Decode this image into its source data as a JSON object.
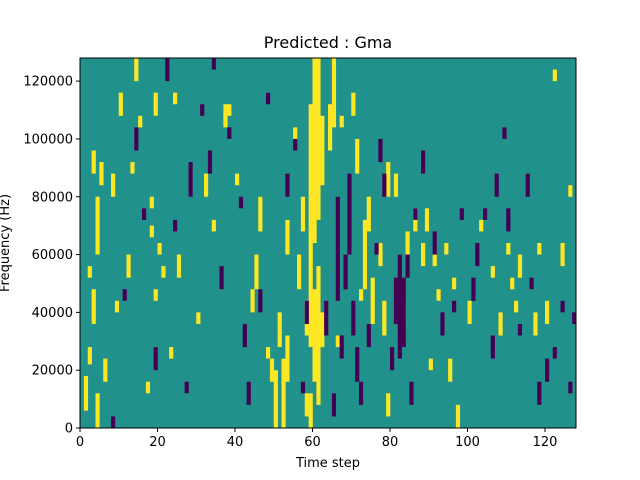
{
  "chart_data": {
    "type": "heatmap",
    "title": "Predicted : Gma",
    "xlabel": "Time step",
    "ylabel": "Frequency (Hz)",
    "xlim": [
      0,
      128
    ],
    "ylim": [
      0,
      128000
    ],
    "x_ticks": [
      0,
      20,
      40,
      60,
      80,
      100,
      120
    ],
    "y_ticks": [
      0,
      20000,
      40000,
      60000,
      80000,
      100000,
      120000
    ],
    "n_time_steps": 128,
    "n_freq_bins": 64,
    "freq_bin_hz": 2000,
    "levels": {
      "low": -1,
      "mid": 0,
      "high": 1
    },
    "colors": {
      "low": "#440154",
      "mid": "#21918c",
      "high": "#fde725"
    },
    "cells_high": [
      [
        1,
        3,
        9
      ],
      [
        2,
        11,
        14
      ],
      [
        3,
        44,
        48
      ],
      [
        2,
        26,
        28
      ],
      [
        3,
        18,
        24
      ],
      [
        4,
        0,
        6
      ],
      [
        5,
        42,
        46
      ],
      [
        4,
        30,
        40
      ],
      [
        6,
        8,
        12
      ],
      [
        8,
        40,
        44
      ],
      [
        9,
        20,
        22
      ],
      [
        10,
        54,
        58
      ],
      [
        12,
        26,
        30
      ],
      [
        13,
        44,
        46
      ],
      [
        14,
        60,
        64
      ],
      [
        15,
        52,
        54
      ],
      [
        17,
        6,
        8
      ],
      [
        18,
        33,
        35
      ],
      [
        18,
        38,
        40
      ],
      [
        19,
        54,
        58
      ],
      [
        19,
        22,
        24
      ],
      [
        20,
        30,
        32
      ],
      [
        21,
        26,
        28
      ],
      [
        23,
        12,
        14
      ],
      [
        24,
        56,
        58
      ],
      [
        25,
        26,
        30
      ],
      [
        30,
        18,
        20
      ],
      [
        32,
        40,
        44
      ],
      [
        34,
        34,
        36
      ],
      [
        37,
        52,
        56
      ],
      [
        38,
        54,
        56
      ],
      [
        40,
        42,
        44
      ],
      [
        44,
        20,
        24
      ],
      [
        45,
        24,
        30
      ],
      [
        46,
        34,
        40
      ],
      [
        48,
        12,
        14
      ],
      [
        49,
        8,
        12
      ],
      [
        50,
        0,
        10
      ],
      [
        51,
        14,
        20
      ],
      [
        52,
        0,
        12
      ],
      [
        53,
        8,
        16
      ],
      [
        53,
        30,
        36
      ],
      [
        55,
        50,
        52
      ],
      [
        56,
        24,
        30
      ],
      [
        57,
        34,
        40
      ],
      [
        58,
        2,
        6
      ],
      [
        58,
        16,
        22
      ],
      [
        59,
        0,
        6
      ],
      [
        59,
        14,
        56
      ],
      [
        60,
        8,
        24
      ],
      [
        60,
        32,
        64
      ],
      [
        61,
        4,
        28
      ],
      [
        61,
        36,
        64
      ],
      [
        62,
        14,
        20
      ],
      [
        62,
        42,
        54
      ],
      [
        64,
        48,
        56
      ],
      [
        65,
        52,
        64
      ],
      [
        66,
        14,
        16
      ],
      [
        67,
        52,
        54
      ],
      [
        70,
        54,
        58
      ],
      [
        71,
        44,
        50
      ],
      [
        72,
        22,
        24
      ],
      [
        73,
        24,
        36
      ],
      [
        74,
        34,
        40
      ],
      [
        75,
        18,
        26
      ],
      [
        77,
        28,
        32
      ],
      [
        78,
        16,
        22
      ],
      [
        79,
        2,
        6
      ],
      [
        79,
        40,
        46
      ],
      [
        81,
        40,
        44
      ],
      [
        83,
        18,
        22
      ],
      [
        84,
        30,
        34
      ],
      [
        86,
        34,
        38
      ],
      [
        88,
        28,
        32
      ],
      [
        89,
        34,
        38
      ],
      [
        90,
        10,
        12
      ],
      [
        91,
        28,
        30
      ],
      [
        92,
        22,
        24
      ],
      [
        94,
        30,
        32
      ],
      [
        95,
        8,
        12
      ],
      [
        96,
        24,
        26
      ],
      [
        97,
        0,
        4
      ],
      [
        100,
        18,
        22
      ],
      [
        103,
        34,
        36
      ],
      [
        106,
        26,
        28
      ],
      [
        108,
        16,
        20
      ],
      [
        110,
        30,
        32
      ],
      [
        111,
        24,
        26
      ],
      [
        112,
        20,
        22
      ],
      [
        113,
        26,
        30
      ],
      [
        117,
        16,
        20
      ],
      [
        118,
        30,
        32
      ],
      [
        120,
        18,
        22
      ],
      [
        122,
        60,
        62
      ],
      [
        124,
        28,
        32
      ],
      [
        126,
        40,
        42
      ]
    ],
    "cells_low": [
      [
        8,
        0,
        2
      ],
      [
        11,
        22,
        24
      ],
      [
        14,
        48,
        52
      ],
      [
        16,
        36,
        38
      ],
      [
        19,
        10,
        14
      ],
      [
        22,
        60,
        64
      ],
      [
        24,
        34,
        36
      ],
      [
        27,
        6,
        8
      ],
      [
        28,
        40,
        46
      ],
      [
        31,
        54,
        56
      ],
      [
        33,
        44,
        48
      ],
      [
        34,
        62,
        64
      ],
      [
        36,
        24,
        28
      ],
      [
        38,
        50,
        52
      ],
      [
        41,
        38,
        40
      ],
      [
        42,
        14,
        18
      ],
      [
        43,
        4,
        8
      ],
      [
        46,
        20,
        24
      ],
      [
        48,
        56,
        58
      ],
      [
        53,
        40,
        44
      ],
      [
        55,
        48,
        50
      ],
      [
        57,
        6,
        8
      ],
      [
        58,
        18,
        22
      ],
      [
        63,
        16,
        22
      ],
      [
        65,
        2,
        6
      ],
      [
        66,
        22,
        40
      ],
      [
        67,
        12,
        16
      ],
      [
        68,
        24,
        30
      ],
      [
        69,
        30,
        44
      ],
      [
        70,
        16,
        22
      ],
      [
        71,
        8,
        14
      ],
      [
        72,
        4,
        8
      ],
      [
        74,
        14,
        18
      ],
      [
        76,
        30,
        32
      ],
      [
        77,
        46,
        50
      ],
      [
        78,
        40,
        44
      ],
      [
        80,
        10,
        14
      ],
      [
        81,
        18,
        26
      ],
      [
        82,
        12,
        30
      ],
      [
        83,
        14,
        26
      ],
      [
        84,
        26,
        30
      ],
      [
        85,
        4,
        8
      ],
      [
        86,
        36,
        38
      ],
      [
        88,
        44,
        48
      ],
      [
        91,
        30,
        34
      ],
      [
        93,
        16,
        20
      ],
      [
        96,
        20,
        22
      ],
      [
        98,
        36,
        38
      ],
      [
        101,
        22,
        26
      ],
      [
        102,
        28,
        32
      ],
      [
        104,
        36,
        38
      ],
      [
        106,
        12,
        16
      ],
      [
        107,
        40,
        44
      ],
      [
        109,
        50,
        52
      ],
      [
        110,
        34,
        38
      ],
      [
        113,
        16,
        18
      ],
      [
        115,
        40,
        44
      ],
      [
        116,
        24,
        26
      ],
      [
        118,
        4,
        8
      ],
      [
        120,
        8,
        12
      ],
      [
        122,
        12,
        14
      ],
      [
        124,
        20,
        22
      ],
      [
        126,
        6,
        8
      ],
      [
        127,
        18,
        20
      ]
    ]
  }
}
